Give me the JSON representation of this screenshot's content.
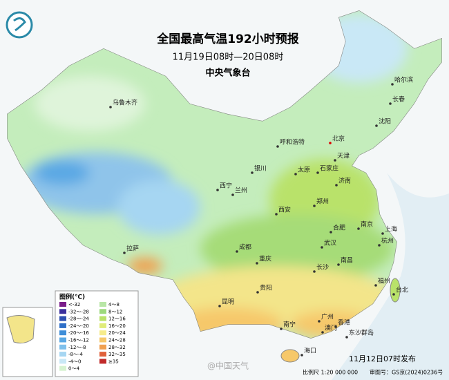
{
  "header": {
    "title": "全国最高气温192小时预报",
    "subtitle": "11月19日08时—20日08时",
    "issuer": "中央气象台"
  },
  "cities": [
    "乌鲁木齐",
    "呼和浩特",
    "北京",
    "天津",
    "哈尔滨",
    "长春",
    "沈阳",
    "银川",
    "太原",
    "石家庄",
    "济南",
    "西宁",
    "兰州",
    "西安",
    "郑州",
    "合肥",
    "南京",
    "上海",
    "杭州",
    "武汉",
    "成都",
    "重庆",
    "拉萨",
    "长沙",
    "南昌",
    "福州",
    "台北",
    "贵阳",
    "昆明",
    "广州",
    "香港",
    "澳门",
    "南宁",
    "海口",
    "东沙群岛"
  ],
  "legend": {
    "title": "图例(℃)",
    "items": [
      {
        "label": "<-32",
        "color": "#7a1d8a"
      },
      {
        "label": "-32～-28",
        "color": "#3b2f9c"
      },
      {
        "label": "-28～-24",
        "color": "#2d4fb0"
      },
      {
        "label": "-24～-20",
        "color": "#2f6fc8"
      },
      {
        "label": "-20～-16",
        "color": "#3f8ed8"
      },
      {
        "label": "-16～-12",
        "color": "#5aa8e4"
      },
      {
        "label": "-12～-8",
        "color": "#7ec0ec"
      },
      {
        "label": "-8～-4",
        "color": "#a6d6f2"
      },
      {
        "label": "-4～0",
        "color": "#c9e8f6"
      },
      {
        "label": "0～4",
        "color": "#d6f2d0"
      },
      {
        "label": "4～8",
        "color": "#b8e6a6"
      },
      {
        "label": "8～12",
        "color": "#9cd97c"
      },
      {
        "label": "12～16",
        "color": "#b9e26a"
      },
      {
        "label": "16～20",
        "color": "#e0ec7a"
      },
      {
        "label": "20～24",
        "color": "#f6ec8c"
      },
      {
        "label": "24～28",
        "color": "#f6c86a"
      },
      {
        "label": "28～32",
        "color": "#f0a050"
      },
      {
        "label": "32～35",
        "color": "#e0603a"
      },
      {
        "label": "≥35",
        "color": "#c02a2a"
      }
    ]
  },
  "footer": {
    "scale": "比例尺 1:20 000 000",
    "map_number": "审图号：GS京(2024)0236号",
    "published": "11月12日07时发布",
    "watermark": "@中国天气"
  }
}
